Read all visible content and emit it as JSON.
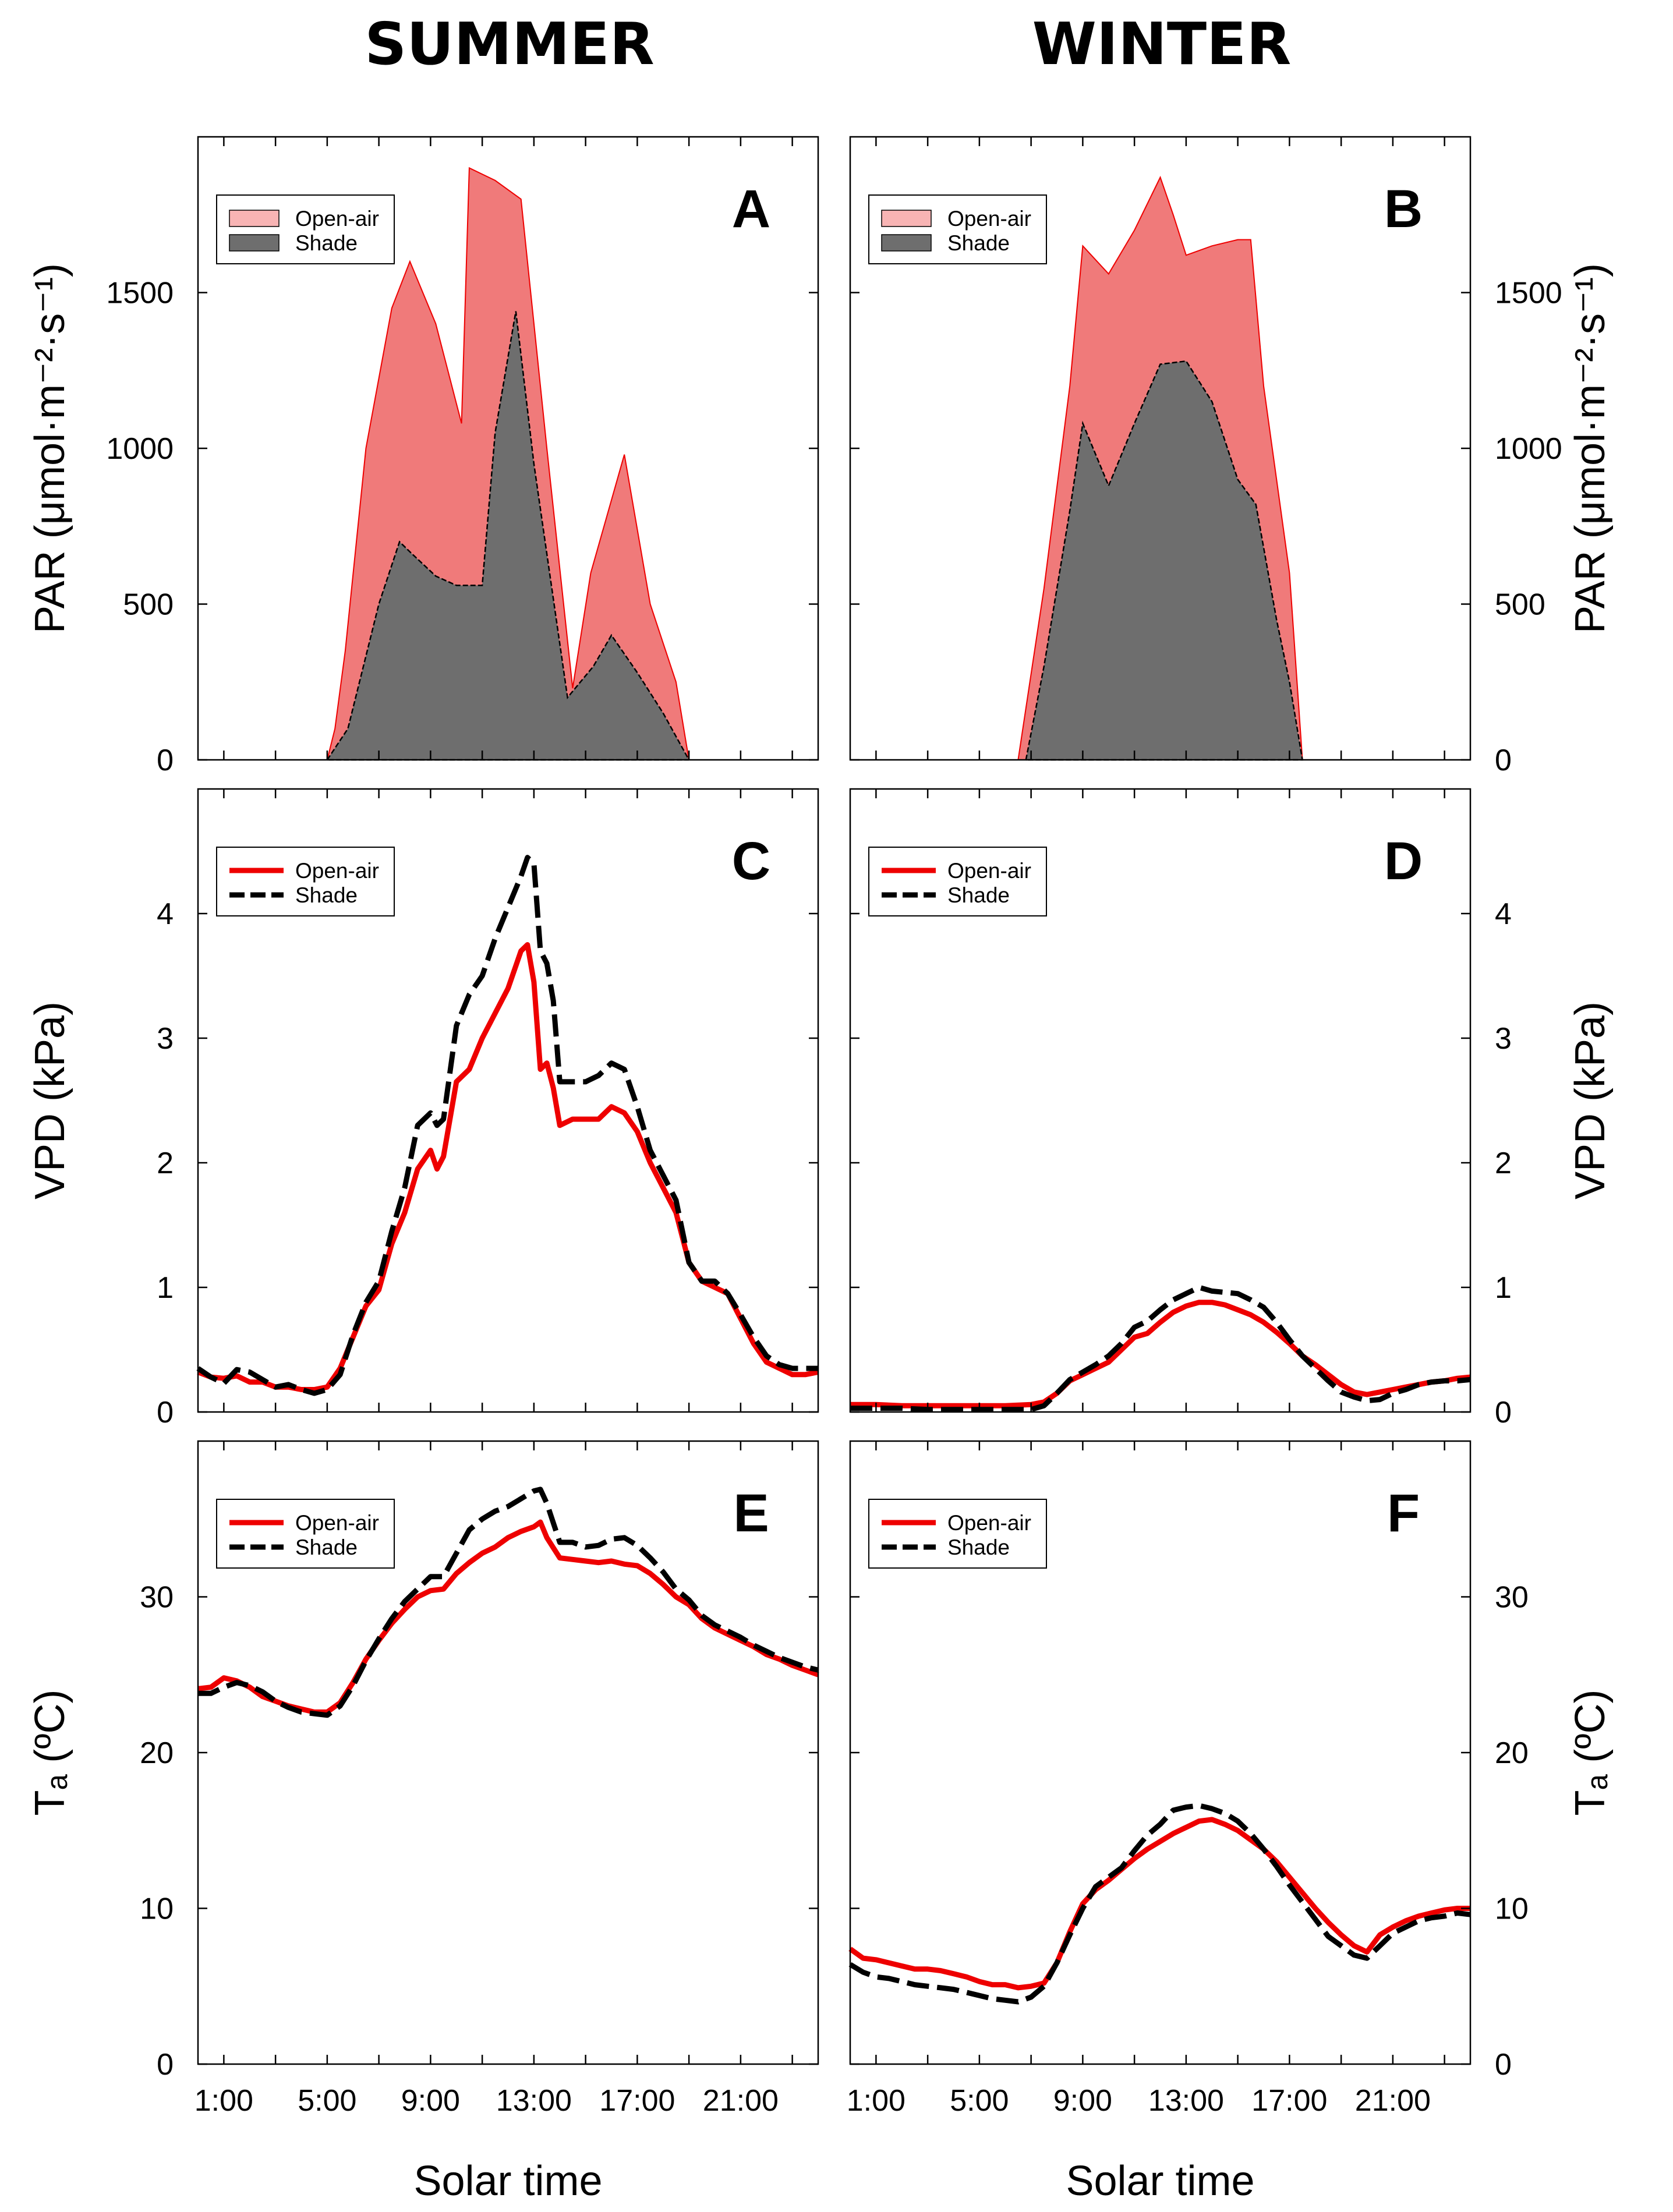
{
  "colors": {
    "open_air": "#ee0000",
    "open_air_fill": "#f07a7a",
    "shade_fill": "#6e6e6e",
    "shade_line": "#000000"
  },
  "column_titles": {
    "summer": "SUMMER",
    "winter": "WINTER"
  },
  "xlabel": "Solar time",
  "x_ticks": [
    {
      "value": 1,
      "label": "1:00"
    },
    {
      "value": 5,
      "label": "5:00"
    },
    {
      "value": 9,
      "label": "9:00"
    },
    {
      "value": 13,
      "label": "13:00"
    },
    {
      "value": 17,
      "label": "17:00"
    },
    {
      "value": 21,
      "label": "21:00"
    }
  ],
  "chart_data": [
    {
      "id": "A",
      "letter": "A",
      "type": "area",
      "column": "summer",
      "row": 0,
      "ylabel": "PAR (μmol·m⁻²·s⁻¹)",
      "xlim": [
        0,
        24
      ],
      "ylim": [
        0,
        2000
      ],
      "y_ticks": [
        0,
        500,
        1000,
        1500
      ],
      "legend": [
        "Open-air",
        "Shade"
      ],
      "series": [
        {
          "name": "Open-air",
          "x": [
            5,
            5.3,
            5.7,
            6.5,
            7.5,
            8.2,
            9.2,
            10.2,
            10.5,
            11.5,
            12.5,
            13.5,
            14.5,
            15.2,
            16.5,
            17.5,
            18.5,
            19
          ],
          "values": [
            0,
            100,
            350,
            1000,
            1450,
            1600,
            1400,
            1080,
            1900,
            1860,
            1800,
            1000,
            230,
            600,
            980,
            500,
            250,
            0
          ]
        },
        {
          "name": "Shade",
          "x": [
            5,
            5.8,
            7,
            7.8,
            8.3,
            9.2,
            10,
            11,
            11.5,
            12.3,
            13,
            14.3,
            15.3,
            16,
            17,
            18,
            19
          ],
          "values": [
            0,
            100,
            500,
            700,
            660,
            590,
            560,
            560,
            1050,
            1440,
            950,
            200,
            300,
            400,
            280,
            150,
            0
          ]
        }
      ]
    },
    {
      "id": "B",
      "letter": "B",
      "type": "area",
      "column": "winter",
      "row": 0,
      "ylabel": "PAR (μmol·m⁻²·s⁻¹)",
      "xlim": [
        0,
        24
      ],
      "ylim": [
        0,
        2000
      ],
      "y_ticks": [
        0,
        500,
        1000,
        1500
      ],
      "legend": [
        "Open-air",
        "Shade"
      ],
      "series": [
        {
          "name": "Open-air",
          "x": [
            6.5,
            7.5,
            8.5,
            9,
            10,
            11,
            12,
            12.5,
            13,
            14,
            15,
            15.5,
            16,
            17,
            17.5
          ],
          "values": [
            0,
            550,
            1200,
            1650,
            1560,
            1700,
            1870,
            1750,
            1620,
            1650,
            1670,
            1670,
            1200,
            600,
            0
          ]
        },
        {
          "name": "Shade",
          "x": [
            6.8,
            7.5,
            8.5,
            9,
            10,
            11,
            12,
            13,
            14,
            15,
            15.7,
            16.5,
            17,
            17.5
          ],
          "values": [
            0,
            300,
            800,
            1080,
            880,
            1080,
            1270,
            1280,
            1150,
            900,
            820,
            450,
            250,
            0
          ]
        }
      ]
    },
    {
      "id": "C",
      "letter": "C",
      "type": "line",
      "column": "summer",
      "row": 1,
      "ylabel": "VPD (kPa)",
      "xlim": [
        0,
        24
      ],
      "ylim": [
        0,
        5
      ],
      "y_ticks": [
        0,
        1,
        2,
        3,
        4
      ],
      "legend": [
        "Open-air",
        "Shade"
      ],
      "series": [
        {
          "name": "Open-air",
          "x": [
            0,
            0.5,
            1,
            1.5,
            2,
            2.5,
            3,
            3.5,
            4,
            4.5,
            5,
            5.5,
            6,
            6.5,
            7,
            7.5,
            8,
            8.5,
            9,
            9.25,
            9.5,
            10,
            10.5,
            11,
            11.5,
            12,
            12.5,
            12.75,
            13,
            13.25,
            13.5,
            13.75,
            14,
            14.5,
            15,
            15.5,
            16,
            16.5,
            17,
            17.5,
            18,
            18.5,
            19,
            19.5,
            20,
            20.5,
            21,
            21.5,
            22,
            22.5,
            23,
            23.5,
            24
          ],
          "values": [
            0.32,
            0.28,
            0.27,
            0.29,
            0.24,
            0.24,
            0.2,
            0.2,
            0.18,
            0.18,
            0.2,
            0.35,
            0.6,
            0.85,
            0.98,
            1.35,
            1.6,
            1.95,
            2.1,
            1.95,
            2.05,
            2.65,
            2.75,
            3,
            3.2,
            3.4,
            3.7,
            3.75,
            3.45,
            2.75,
            2.8,
            2.6,
            2.3,
            2.35,
            2.35,
            2.35,
            2.45,
            2.4,
            2.25,
            2,
            1.8,
            1.6,
            1.2,
            1.05,
            1,
            0.95,
            0.75,
            0.55,
            0.4,
            0.35,
            0.3,
            0.3,
            0.32
          ]
        },
        {
          "name": "Shade",
          "x": [
            0,
            0.5,
            1,
            1.5,
            2,
            2.5,
            3,
            3.5,
            4,
            4.5,
            5,
            5.5,
            6,
            6.5,
            7,
            7.5,
            8,
            8.5,
            9,
            9.25,
            9.5,
            10,
            10.5,
            11,
            11.5,
            12,
            12.5,
            12.75,
            13,
            13.25,
            13.5,
            13.75,
            14,
            14.5,
            15,
            15.5,
            16,
            16.5,
            17,
            17.5,
            18,
            18.5,
            19,
            19.5,
            20,
            20.5,
            21,
            21.5,
            22,
            22.5,
            23,
            23.5,
            24
          ],
          "values": [
            0.35,
            0.28,
            0.23,
            0.34,
            0.32,
            0.26,
            0.2,
            0.22,
            0.18,
            0.15,
            0.18,
            0.3,
            0.62,
            0.88,
            1.05,
            1.45,
            1.8,
            2.3,
            2.4,
            2.3,
            2.35,
            3.1,
            3.35,
            3.5,
            3.8,
            4.05,
            4.3,
            4.45,
            4.4,
            3.7,
            3.6,
            3.3,
            2.65,
            2.65,
            2.65,
            2.7,
            2.8,
            2.75,
            2.45,
            2.1,
            1.9,
            1.7,
            1.2,
            1.05,
            1.05,
            0.95,
            0.78,
            0.6,
            0.45,
            0.38,
            0.35,
            0.35,
            0.35
          ]
        }
      ]
    },
    {
      "id": "D",
      "letter": "D",
      "type": "line",
      "column": "winter",
      "row": 1,
      "ylabel": "VPD (kPa)",
      "xlim": [
        0,
        24
      ],
      "ylim": [
        0,
        5
      ],
      "y_ticks": [
        0,
        1,
        2,
        3,
        4
      ],
      "legend": [
        "Open-air",
        "Shade"
      ],
      "series": [
        {
          "name": "Open-air",
          "x": [
            0,
            1,
            2,
            3,
            4,
            5,
            6,
            7,
            7.5,
            8,
            8.5,
            9,
            9.5,
            10,
            10.5,
            11,
            11.5,
            12,
            12.5,
            13,
            13.5,
            14,
            14.5,
            15,
            15.5,
            16,
            16.5,
            17,
            17.5,
            18,
            18.5,
            19,
            19.5,
            20,
            20.5,
            21,
            21.5,
            22,
            22.5,
            23,
            23.5,
            24
          ],
          "values": [
            0.06,
            0.06,
            0.05,
            0.05,
            0.05,
            0.05,
            0.05,
            0.06,
            0.08,
            0.15,
            0.25,
            0.3,
            0.35,
            0.4,
            0.5,
            0.6,
            0.63,
            0.72,
            0.8,
            0.85,
            0.88,
            0.88,
            0.86,
            0.82,
            0.78,
            0.72,
            0.64,
            0.55,
            0.45,
            0.38,
            0.3,
            0.22,
            0.16,
            0.14,
            0.16,
            0.18,
            0.2,
            0.22,
            0.24,
            0.25,
            0.27,
            0.28
          ]
        },
        {
          "name": "Shade",
          "x": [
            0,
            1,
            2,
            3,
            4,
            5,
            6,
            7,
            7.5,
            8,
            8.5,
            9,
            9.5,
            10,
            10.5,
            11,
            11.5,
            12,
            12.5,
            13,
            13.5,
            14,
            14.5,
            15,
            15.5,
            16,
            16.5,
            17,
            17.5,
            18,
            18.5,
            19,
            19.5,
            20,
            20.5,
            21,
            21.5,
            22,
            22.5,
            23,
            23.5,
            24
          ],
          "values": [
            0.03,
            0.03,
            0.03,
            0.02,
            0.02,
            0.02,
            0.02,
            0.02,
            0.05,
            0.15,
            0.26,
            0.32,
            0.38,
            0.45,
            0.55,
            0.68,
            0.73,
            0.82,
            0.9,
            0.95,
            1,
            0.97,
            0.96,
            0.95,
            0.9,
            0.84,
            0.72,
            0.58,
            0.45,
            0.35,
            0.25,
            0.16,
            0.12,
            0.09,
            0.1,
            0.15,
            0.18,
            0.22,
            0.24,
            0.25,
            0.25,
            0.26
          ]
        }
      ]
    },
    {
      "id": "E",
      "letter": "E",
      "type": "line",
      "column": "summer",
      "row": 2,
      "ylabel": "Tₐ (ºC)",
      "xlim": [
        0,
        24
      ],
      "ylim": [
        0,
        40
      ],
      "y_ticks": [
        0,
        10,
        20,
        30
      ],
      "legend": [
        "Open-air",
        "Shade"
      ],
      "series": [
        {
          "name": "Open-air",
          "x": [
            0,
            0.5,
            1,
            1.5,
            2,
            2.5,
            3,
            3.5,
            4,
            4.5,
            5,
            5.5,
            6,
            6.5,
            7,
            7.5,
            8,
            8.5,
            9,
            9.5,
            10,
            10.5,
            11,
            11.5,
            12,
            12.5,
            13,
            13.25,
            13.5,
            14,
            14.5,
            15,
            15.5,
            16,
            16.5,
            17,
            17.5,
            18,
            18.5,
            19,
            19.5,
            20,
            20.5,
            21,
            21.5,
            22,
            22.5,
            23,
            23.5,
            24
          ],
          "values": [
            24.1,
            24.2,
            24.8,
            24.6,
            24.2,
            23.6,
            23.3,
            23,
            22.8,
            22.6,
            22.6,
            23.2,
            24.5,
            26,
            27.2,
            28.3,
            29.2,
            30,
            30.4,
            30.5,
            31.5,
            32.2,
            32.8,
            33.2,
            33.8,
            34.2,
            34.5,
            34.8,
            33.8,
            32.5,
            32.4,
            32.3,
            32.2,
            32.3,
            32.1,
            32,
            31.5,
            30.8,
            30,
            29.5,
            28.6,
            28,
            27.6,
            27.2,
            26.8,
            26.3,
            26,
            25.6,
            25.3,
            25
          ]
        },
        {
          "name": "Shade",
          "x": [
            0,
            0.5,
            1,
            1.5,
            2,
            2.5,
            3,
            3.5,
            4,
            4.5,
            5,
            5.5,
            6,
            6.5,
            7,
            7.5,
            8,
            8.5,
            9,
            9.5,
            10,
            10.5,
            11,
            11.5,
            12,
            12.5,
            13,
            13.25,
            13.5,
            14,
            14.5,
            15,
            15.5,
            16,
            16.5,
            17,
            17.5,
            18,
            18.5,
            19,
            19.5,
            20,
            20.5,
            21,
            21.5,
            22,
            22.5,
            23,
            23.5,
            24
          ],
          "values": [
            23.8,
            23.8,
            24.2,
            24.5,
            24.3,
            23.9,
            23.3,
            22.9,
            22.6,
            22.5,
            22.4,
            23,
            24.3,
            25.9,
            27.3,
            28.6,
            29.7,
            30.5,
            31.3,
            31.3,
            32.8,
            34.3,
            35,
            35.5,
            35.8,
            36.3,
            36.8,
            36.9,
            36,
            33.5,
            33.5,
            33.2,
            33.3,
            33.7,
            33.8,
            33.3,
            32.5,
            31.6,
            30.5,
            29.8,
            28.8,
            28.2,
            27.8,
            27.4,
            26.9,
            26.5,
            26.1,
            25.8,
            25.5,
            25.3
          ]
        }
      ]
    },
    {
      "id": "F",
      "letter": "F",
      "type": "line",
      "column": "winter",
      "row": 2,
      "ylabel": "Tₐ (ºC)",
      "xlim": [
        0,
        24
      ],
      "ylim": [
        0,
        40
      ],
      "y_ticks": [
        0,
        10,
        20,
        30
      ],
      "legend": [
        "Open-air",
        "Shade"
      ],
      "series": [
        {
          "name": "Open-air",
          "x": [
            0,
            0.5,
            1,
            1.5,
            2,
            2.5,
            3,
            3.5,
            4,
            4.5,
            5,
            5.5,
            6,
            6.5,
            7,
            7.5,
            8,
            8.5,
            9,
            9.5,
            10,
            10.5,
            11,
            11.5,
            12,
            12.5,
            13,
            13.5,
            14,
            14.5,
            15,
            15.5,
            16,
            16.5,
            17,
            17.5,
            18,
            18.5,
            19,
            19.5,
            20,
            20.5,
            21,
            21.5,
            22,
            22.5,
            23,
            23.5,
            24
          ],
          "values": [
            7.4,
            6.8,
            6.7,
            6.5,
            6.3,
            6.1,
            6.1,
            6,
            5.8,
            5.6,
            5.3,
            5.1,
            5.1,
            4.9,
            5,
            5.2,
            6.5,
            8.5,
            10.3,
            11.2,
            11.8,
            12.5,
            13.2,
            13.8,
            14.3,
            14.8,
            15.2,
            15.6,
            15.7,
            15.4,
            15,
            14.4,
            13.8,
            13,
            12,
            11,
            10,
            9.1,
            8.3,
            7.6,
            7.2,
            8.3,
            8.8,
            9.2,
            9.5,
            9.7,
            9.9,
            10,
            10
          ]
        },
        {
          "name": "Shade",
          "x": [
            0,
            0.5,
            1,
            1.5,
            2,
            2.5,
            3,
            3.5,
            4,
            4.5,
            5,
            5.5,
            6,
            6.5,
            7,
            7.5,
            8,
            8.5,
            9,
            9.5,
            10,
            10.5,
            11,
            11.5,
            12,
            12.5,
            13,
            13.5,
            14,
            14.5,
            15,
            15.5,
            16,
            16.5,
            17,
            17.5,
            18,
            18.5,
            19,
            19.5,
            20,
            20.5,
            21,
            21.5,
            22,
            22.5,
            23,
            23.5,
            24
          ],
          "values": [
            6.4,
            5.9,
            5.6,
            5.5,
            5.3,
            5.1,
            5,
            4.9,
            4.8,
            4.6,
            4.4,
            4.2,
            4.1,
            4,
            4.3,
            5,
            6.5,
            8.3,
            10,
            11.4,
            12,
            12.6,
            13.7,
            14.7,
            15.4,
            16.3,
            16.5,
            16.6,
            16.4,
            16.1,
            15.6,
            14.8,
            13.8,
            12.7,
            11.5,
            10.4,
            9.3,
            8.2,
            7.6,
            7,
            6.8,
            7.6,
            8.4,
            8.8,
            9.2,
            9.4,
            9.5,
            9.7,
            9.6
          ]
        }
      ]
    }
  ]
}
